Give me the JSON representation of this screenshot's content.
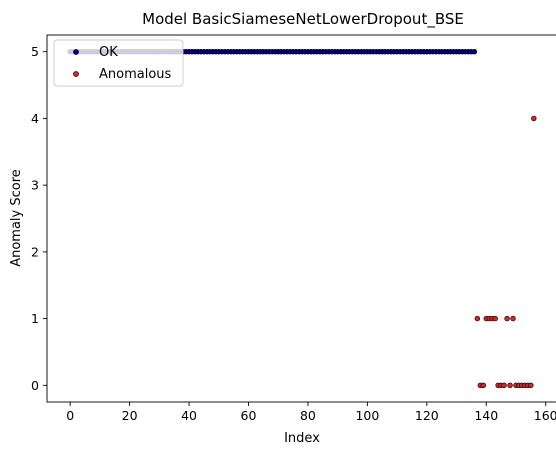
{
  "chart_data": {
    "type": "scatter",
    "title": "Model BasicSiameseNetLowerDropout_BSE",
    "xlabel": "Index",
    "ylabel": "Anomaly Score",
    "xlim": [
      -7.8,
      163.8
    ],
    "ylim": [
      -0.25,
      5.25
    ],
    "x_ticks": [
      0,
      20,
      40,
      60,
      80,
      100,
      120,
      140,
      160
    ],
    "y_ticks": [
      0,
      1,
      2,
      3,
      4,
      5
    ],
    "x_tick_labels": [
      "0",
      "20",
      "40",
      "60",
      "80",
      "100",
      "120",
      "140",
      "160"
    ],
    "y_tick_labels": [
      "0",
      "1",
      "2",
      "3",
      "4",
      "5"
    ],
    "grid": false,
    "legend": {
      "position": "top-left",
      "entries": [
        "OK",
        "Anomalous"
      ]
    },
    "series": [
      {
        "name": "OK",
        "color": "#00008b",
        "edge_color": "#000000",
        "x": [
          0,
          1,
          2,
          3,
          4,
          5,
          6,
          7,
          8,
          9,
          10,
          11,
          12,
          13,
          14,
          15,
          16,
          17,
          18,
          19,
          20,
          21,
          22,
          23,
          24,
          25,
          26,
          27,
          28,
          29,
          30,
          31,
          32,
          33,
          34,
          35,
          36,
          37,
          38,
          39,
          40,
          41,
          42,
          43,
          44,
          45,
          46,
          47,
          48,
          49,
          50,
          51,
          52,
          53,
          54,
          55,
          56,
          57,
          58,
          59,
          60,
          61,
          62,
          63,
          64,
          65,
          66,
          67,
          68,
          69,
          70,
          71,
          72,
          73,
          74,
          75,
          76,
          77,
          78,
          79,
          80,
          81,
          82,
          83,
          84,
          85,
          86,
          87,
          88,
          89,
          90,
          91,
          92,
          93,
          94,
          95,
          96,
          97,
          98,
          99,
          100,
          101,
          102,
          103,
          104,
          105,
          106,
          107,
          108,
          109,
          110,
          111,
          112,
          113,
          114,
          115,
          116,
          117,
          118,
          119,
          120,
          121,
          122,
          123,
          124,
          125,
          126,
          127,
          128,
          129,
          130,
          131,
          132,
          133,
          134,
          135,
          136
        ],
        "y": [
          5,
          5,
          5,
          5,
          5,
          5,
          5,
          5,
          5,
          5,
          5,
          5,
          5,
          5,
          5,
          5,
          5,
          5,
          5,
          5,
          5,
          5,
          5,
          5,
          5,
          5,
          5,
          5,
          5,
          5,
          5,
          5,
          5,
          5,
          5,
          5,
          5,
          5,
          5,
          5,
          5,
          5,
          5,
          5,
          5,
          5,
          5,
          5,
          5,
          5,
          5,
          5,
          5,
          5,
          5,
          5,
          5,
          5,
          5,
          5,
          5,
          5,
          5,
          5,
          5,
          5,
          5,
          5,
          5,
          5,
          5,
          5,
          5,
          5,
          5,
          5,
          5,
          5,
          5,
          5,
          5,
          5,
          5,
          5,
          5,
          5,
          5,
          5,
          5,
          5,
          5,
          5,
          5,
          5,
          5,
          5,
          5,
          5,
          5,
          5,
          5,
          5,
          5,
          5,
          5,
          5,
          5,
          5,
          5,
          5,
          5,
          5,
          5,
          5,
          5,
          5,
          5,
          5,
          5,
          5,
          5,
          5,
          5,
          5,
          5,
          5,
          5,
          5,
          5,
          5,
          5,
          5,
          5,
          5,
          5,
          5,
          5
        ]
      },
      {
        "name": "Anomalous",
        "color": "#d62728",
        "edge_color": "#000000",
        "x": [
          137,
          138,
          139,
          140,
          141,
          142,
          143,
          144,
          145,
          146,
          147,
          148,
          149,
          150,
          151,
          152,
          153,
          154,
          155,
          156
        ],
        "y": [
          1,
          0,
          0,
          1,
          1,
          1,
          1,
          0,
          0,
          0,
          1,
          0,
          1,
          0,
          0,
          0,
          0,
          0,
          0,
          4
        ]
      }
    ]
  }
}
